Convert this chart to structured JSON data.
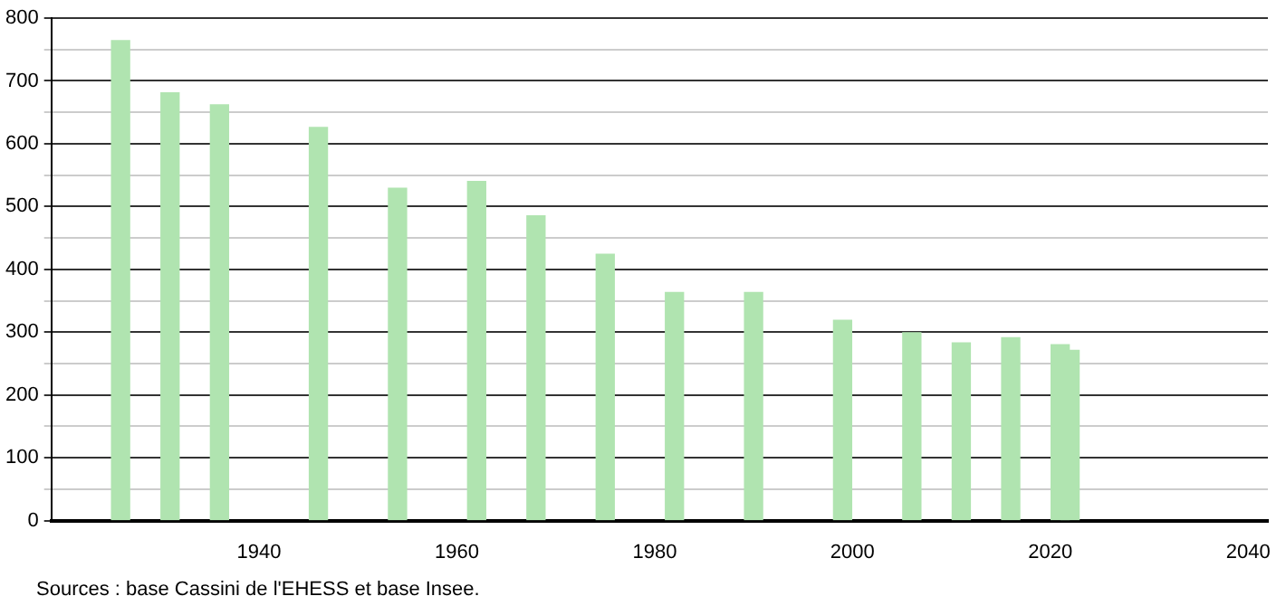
{
  "chart_data": {
    "type": "bar",
    "x": [
      1926,
      1931,
      1936,
      1946,
      1954,
      1962,
      1968,
      1975,
      1982,
      1990,
      1999,
      2006,
      2011,
      2016,
      2021,
      2022
    ],
    "values": [
      764,
      681,
      662,
      626,
      529,
      540,
      485,
      424,
      363,
      363,
      319,
      299,
      283,
      291,
      280,
      271
    ],
    "color": "#b0e4b0",
    "xlim": [
      1919,
      2042
    ],
    "xticks": [
      1940,
      1960,
      1980,
      2000,
      2020,
      2040
    ],
    "ylim": [
      0,
      800
    ],
    "yticks": [
      0,
      {
        "value": 50,
        "label": null
      },
      100,
      {
        "value": 150,
        "label": null
      },
      200,
      {
        "value": 250,
        "label": null
      },
      300,
      {
        "value": 350,
        "label": null
      },
      400,
      {
        "value": 450,
        "label": null
      },
      500,
      {
        "value": 550,
        "label": null
      },
      600,
      {
        "value": 650,
        "label": null
      },
      700,
      {
        "value": 750,
        "label": null
      },
      800
    ],
    "grid": "y",
    "annotations": [
      "Sources : base Cassini de l'EHESS et base Insee."
    ]
  }
}
